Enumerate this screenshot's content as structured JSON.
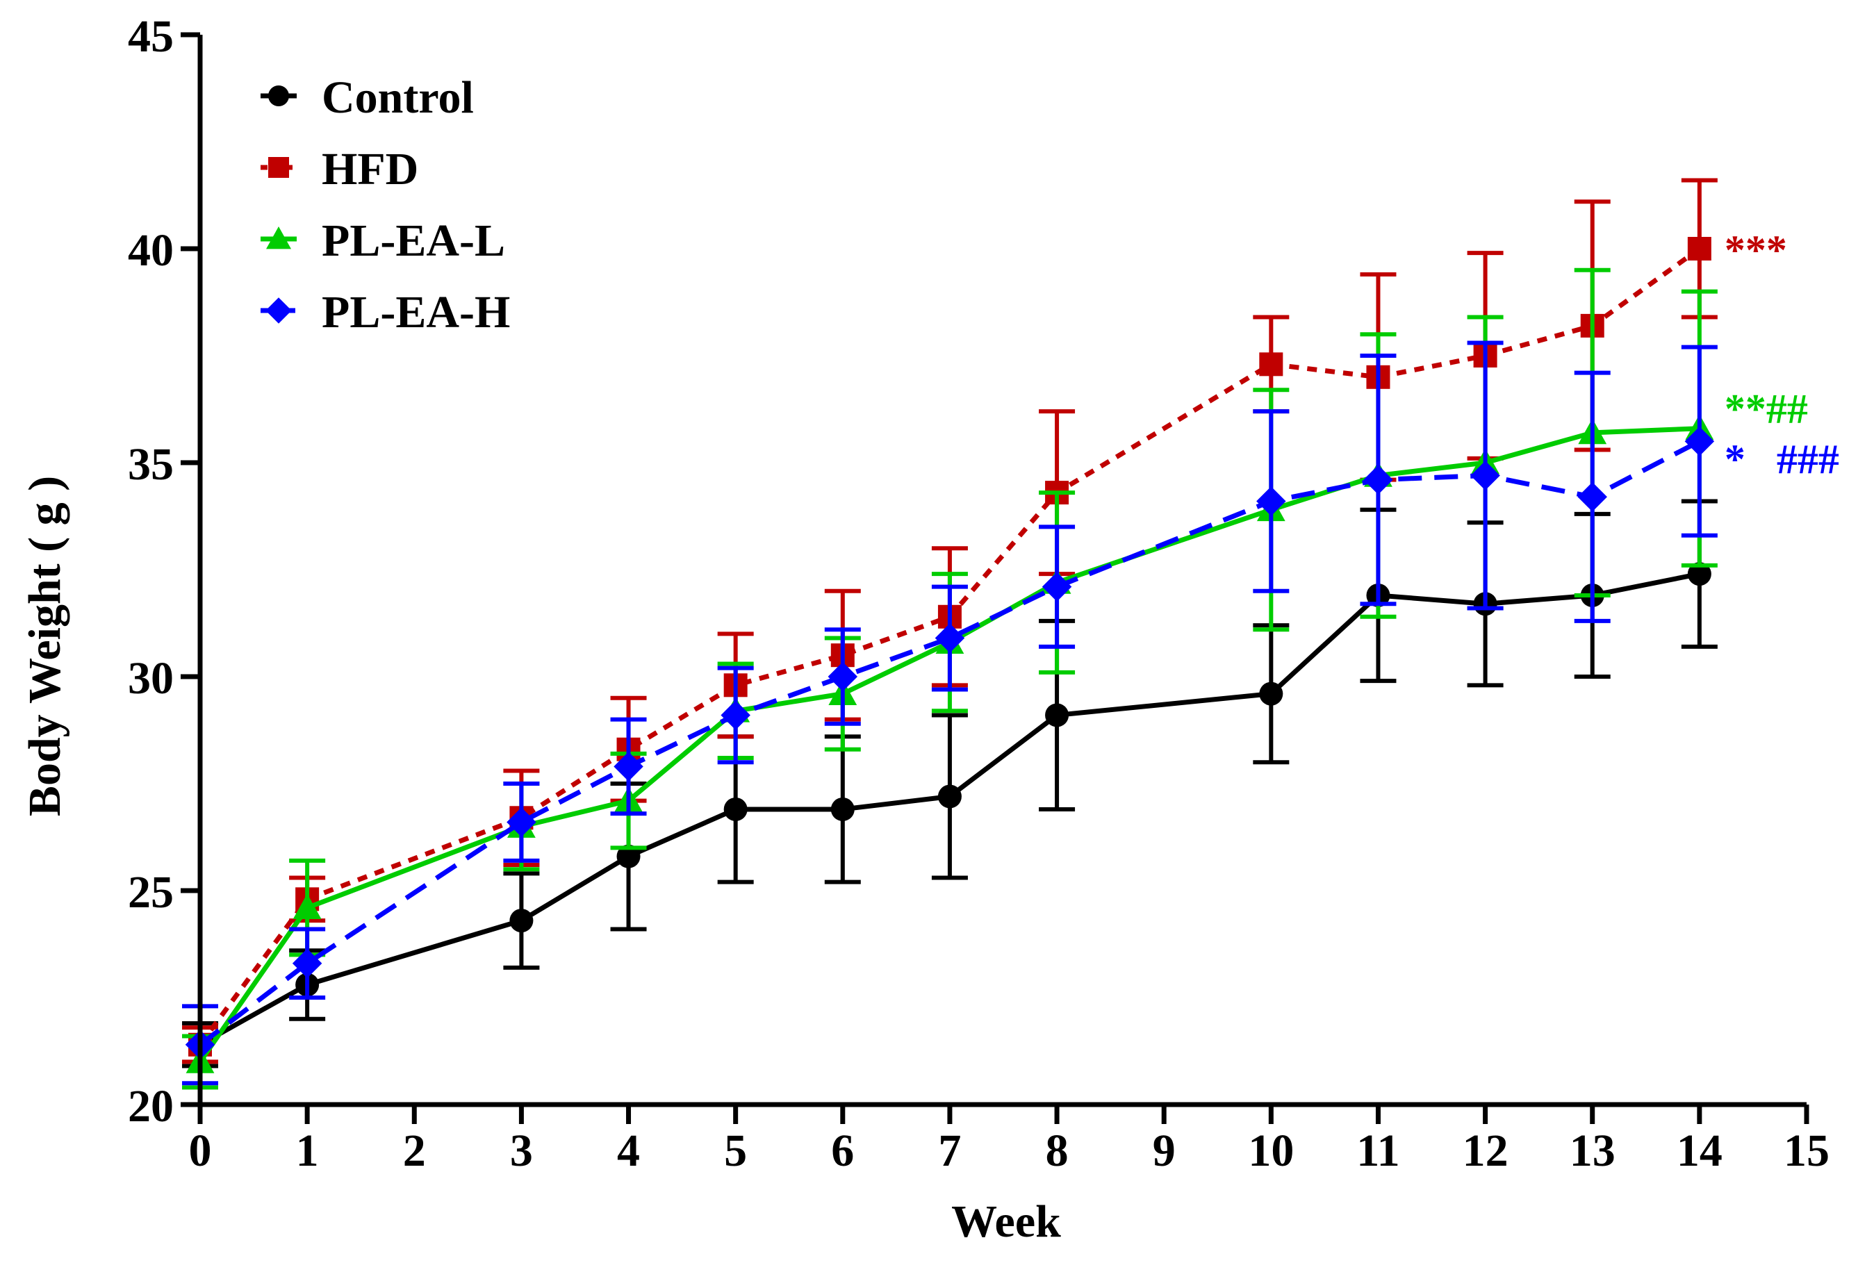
{
  "chart_data": {
    "type": "line",
    "title": "",
    "xlabel": "Week",
    "ylabel": "Body Weight ( g )",
    "xlim": [
      0,
      15
    ],
    "ylim": [
      20,
      45
    ],
    "xticks": [
      "0",
      "1",
      "2",
      "3",
      "4",
      "5",
      "6",
      "7",
      "8",
      "9",
      "10",
      "11",
      "12",
      "13",
      "14",
      "15"
    ],
    "yticks": [
      "20",
      "25",
      "30",
      "35",
      "40",
      "45"
    ],
    "legend_position": "top-left",
    "series": [
      {
        "name": "Control",
        "color": "#000000",
        "marker": "circle",
        "line": "solid",
        "x": [
          0,
          1,
          3,
          4,
          5,
          6,
          7,
          8,
          10,
          11,
          12,
          13,
          14
        ],
        "y": [
          21.4,
          22.8,
          24.3,
          25.8,
          26.9,
          26.9,
          27.2,
          29.1,
          29.6,
          31.9,
          31.7,
          31.9,
          32.4
        ],
        "err": [
          0.5,
          0.8,
          1.1,
          1.7,
          1.7,
          1.7,
          1.9,
          2.2,
          1.6,
          2.0,
          1.9,
          1.9,
          1.7
        ]
      },
      {
        "name": "HFD",
        "color": "#c00000",
        "marker": "square",
        "line": "dotted",
        "x": [
          0,
          1,
          3,
          4,
          5,
          6,
          7,
          8,
          10,
          11,
          12,
          13,
          14
        ],
        "y": [
          21.4,
          24.8,
          26.7,
          28.3,
          29.8,
          30.5,
          31.4,
          34.3,
          37.3,
          37.0,
          37.5,
          38.2,
          40.0
        ],
        "err": [
          0.4,
          0.5,
          1.1,
          1.2,
          1.2,
          1.5,
          1.6,
          1.9,
          1.1,
          2.4,
          2.4,
          2.9,
          1.6
        ]
      },
      {
        "name": "PL-EA-L",
        "color": "#00cc00",
        "marker": "triangle",
        "line": "solid",
        "x": [
          0,
          1,
          3,
          4,
          5,
          6,
          7,
          8,
          10,
          11,
          12,
          13,
          14
        ],
        "y": [
          21.0,
          24.6,
          26.5,
          27.1,
          29.2,
          29.6,
          30.8,
          32.2,
          33.9,
          34.7,
          35.0,
          35.7,
          35.8
        ],
        "err": [
          0.6,
          1.1,
          1.0,
          1.1,
          1.1,
          1.3,
          1.6,
          2.1,
          2.8,
          3.3,
          3.4,
          3.8,
          3.2
        ]
      },
      {
        "name": "PL-EA-H",
        "color": "#0000ff",
        "marker": "diamond",
        "line": "dashed",
        "x": [
          0,
          1,
          3,
          4,
          5,
          6,
          7,
          8,
          10,
          11,
          12,
          13,
          14
        ],
        "y": [
          21.4,
          23.3,
          26.6,
          27.9,
          29.1,
          30.0,
          30.9,
          32.1,
          34.1,
          34.6,
          34.7,
          34.2,
          35.5
        ],
        "err": [
          0.9,
          0.8,
          0.9,
          1.1,
          1.1,
          1.1,
          1.2,
          1.4,
          2.1,
          2.9,
          3.1,
          2.9,
          2.2
        ]
      }
    ],
    "annotations": [
      {
        "series": "HFD",
        "text": "***",
        "color": "#c00000"
      },
      {
        "series": "PL-EA-L",
        "text": "**##",
        "color": "#00cc00"
      },
      {
        "series": "PL-EA-H",
        "text": "*   ###",
        "color": "#0000ff"
      }
    ]
  }
}
